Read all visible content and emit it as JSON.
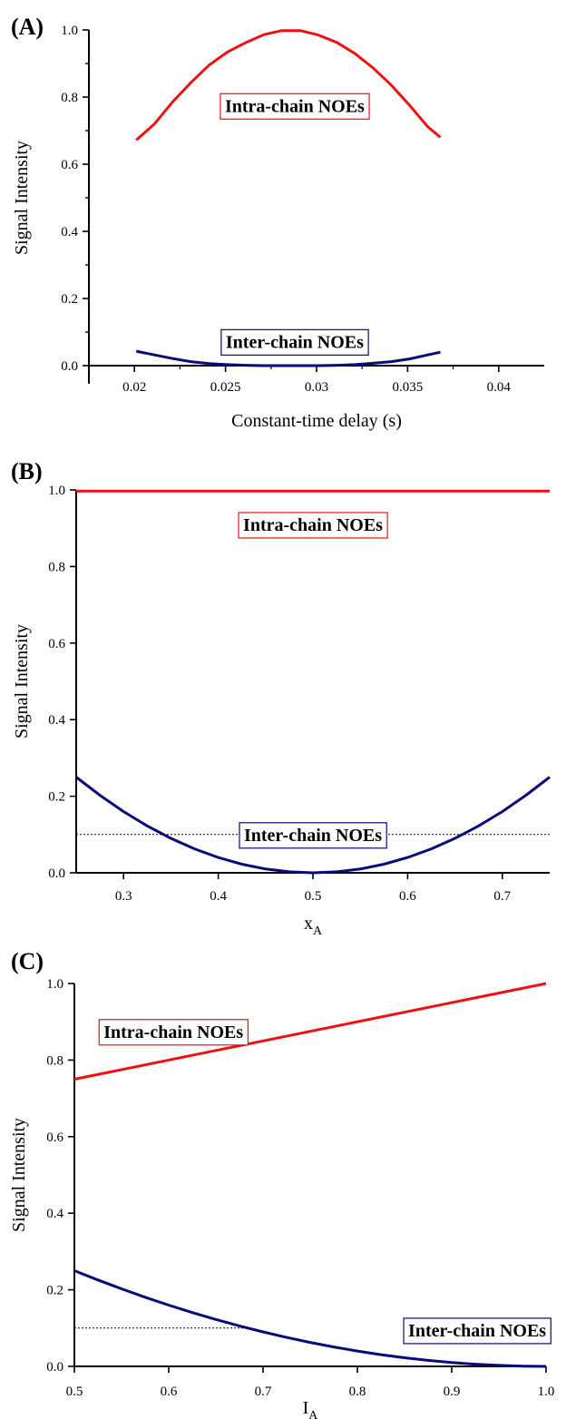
{
  "colors": {
    "intra": "#ee1111",
    "inter": "#0a0a7a",
    "axis": "#000000"
  },
  "chart_data": [
    {
      "type": "line",
      "panel_label": "(A)",
      "xlabel": "Constant-time delay (s)",
      "xlabel_sub": "",
      "ylabel": "Signal Intensity",
      "xlim": [
        0.0175,
        0.0425
      ],
      "ylim": [
        0,
        1.0
      ],
      "xticks": [
        0.02,
        0.025,
        0.03,
        0.035,
        0.04
      ],
      "xtick_labels": [
        "0.02",
        "0.025",
        "0.03",
        "0.035",
        "0.04"
      ],
      "yticks": [
        0.0,
        0.2,
        0.4,
        0.6,
        0.8,
        1.0
      ],
      "ytick_labels": [
        "0.0",
        "0.2",
        "0.4",
        "0.6",
        "0.8",
        "1.0"
      ],
      "yminor": [
        0.1,
        0.3,
        0.5,
        0.7,
        0.9
      ],
      "annotations": [
        {
          "text": "Intra-chain NOEs",
          "series": "intra",
          "x": 0.0288,
          "y": 0.775
        },
        {
          "text": "Inter-chain NOEs",
          "series": "inter",
          "x": 0.0288,
          "y": 0.072
        }
      ],
      "series": [
        {
          "id": "intra",
          "x": [
            0.0201,
            0.0211,
            0.0221,
            0.0231,
            0.0241,
            0.0251,
            0.0261,
            0.0271,
            0.0281,
            0.0291,
            0.0301,
            0.0311,
            0.0321,
            0.0331,
            0.0341,
            0.0351,
            0.0361,
            0.0368
          ],
          "y": [
            0.672,
            0.72,
            0.786,
            0.843,
            0.895,
            0.934,
            0.962,
            0.986,
            0.998,
            0.998,
            0.985,
            0.963,
            0.93,
            0.887,
            0.836,
            0.776,
            0.712,
            0.68
          ]
        },
        {
          "id": "inter",
          "x": [
            0.0201,
            0.0211,
            0.0221,
            0.0231,
            0.0241,
            0.0251,
            0.0261,
            0.0271,
            0.0281,
            0.0291,
            0.0301,
            0.0311,
            0.0321,
            0.0331,
            0.0341,
            0.0351,
            0.0361,
            0.0368
          ],
          "y": [
            0.043,
            0.032,
            0.021,
            0.012,
            0.006,
            0.003,
            0.001,
            0.0,
            0.0,
            0.0,
            0.0,
            0.001,
            0.003,
            0.007,
            0.012,
            0.02,
            0.032,
            0.04
          ]
        }
      ]
    },
    {
      "type": "line",
      "panel_label": "(B)",
      "xlabel": "x",
      "xlabel_sub": "A",
      "ylabel": "Signal Intensity",
      "xlim": [
        0.25,
        0.75
      ],
      "ylim": [
        0,
        1.0
      ],
      "xticks": [
        0.3,
        0.4,
        0.5,
        0.6,
        0.7
      ],
      "xtick_labels": [
        "0.3",
        "0.4",
        "0.5",
        "0.6",
        "0.7"
      ],
      "yticks": [
        0.0,
        0.2,
        0.4,
        0.6,
        0.8,
        1.0
      ],
      "ytick_labels": [
        "0.0",
        "0.2",
        "0.4",
        "0.6",
        "0.8",
        "1.0"
      ],
      "yminor": [],
      "dotted_y": 0.1,
      "annotations": [
        {
          "text": "Intra-chain NOEs",
          "series": "intra",
          "x": 0.5,
          "y": 0.91
        },
        {
          "text": "Inter-chain NOEs",
          "series": "inter",
          "x": 0.5,
          "y": 0.1
        }
      ],
      "series": [
        {
          "id": "intra",
          "x": [
            0.25,
            0.75
          ],
          "y": [
            0.997,
            0.997
          ]
        },
        {
          "id": "inter",
          "x": [
            0.25,
            0.275,
            0.3,
            0.325,
            0.35,
            0.375,
            0.4,
            0.425,
            0.45,
            0.475,
            0.5,
            0.525,
            0.55,
            0.575,
            0.6,
            0.625,
            0.65,
            0.675,
            0.7,
            0.725,
            0.75
          ],
          "y": [
            0.25,
            0.2025,
            0.16,
            0.1225,
            0.09,
            0.0625,
            0.04,
            0.0225,
            0.01,
            0.0025,
            0.0,
            0.0025,
            0.01,
            0.0225,
            0.04,
            0.0625,
            0.09,
            0.1225,
            0.16,
            0.2025,
            0.25
          ]
        }
      ]
    },
    {
      "type": "line",
      "panel_label": "(C)",
      "xlabel": "I",
      "xlabel_sub": "A",
      "ylabel": "Signal Intensity",
      "xlim": [
        0.5,
        1.0
      ],
      "ylim": [
        0,
        1.0
      ],
      "xticks": [
        0.5,
        0.6,
        0.7,
        0.8,
        0.9,
        1.0
      ],
      "xtick_labels": [
        "0.5",
        "0.6",
        "0.7",
        "0.8",
        "0.9",
        "1.0"
      ],
      "yticks": [
        0.0,
        0.2,
        0.4,
        0.6,
        0.8,
        1.0
      ],
      "ytick_labels": [
        "0.0",
        "0.2",
        "0.4",
        "0.6",
        "0.8",
        "1.0"
      ],
      "yminor": [],
      "dotted_y": 0.1,
      "dotted_xmax": 0.68,
      "annotations": [
        {
          "text": "Intra-chain NOEs",
          "series": "intra",
          "x": 0.605,
          "y": 0.875
        },
        {
          "text": "Inter-chain NOEs",
          "series": "inter",
          "x": 0.927,
          "y": 0.095
        }
      ],
      "series": [
        {
          "id": "intra",
          "x": [
            0.5,
            1.0
          ],
          "y": [
            0.75,
            1.0
          ]
        },
        {
          "id": "inter",
          "x": [
            0.5,
            0.525,
            0.55,
            0.575,
            0.6,
            0.625,
            0.65,
            0.675,
            0.7,
            0.725,
            0.75,
            0.775,
            0.8,
            0.825,
            0.85,
            0.875,
            0.9,
            0.925,
            0.95,
            0.975,
            1.0
          ],
          "y": [
            0.25,
            0.2256,
            0.2025,
            0.1806,
            0.16,
            0.1406,
            0.1225,
            0.1056,
            0.09,
            0.0756,
            0.0625,
            0.0506,
            0.04,
            0.0306,
            0.0225,
            0.0156,
            0.01,
            0.0056,
            0.0025,
            0.0006,
            0.0
          ]
        }
      ]
    }
  ]
}
